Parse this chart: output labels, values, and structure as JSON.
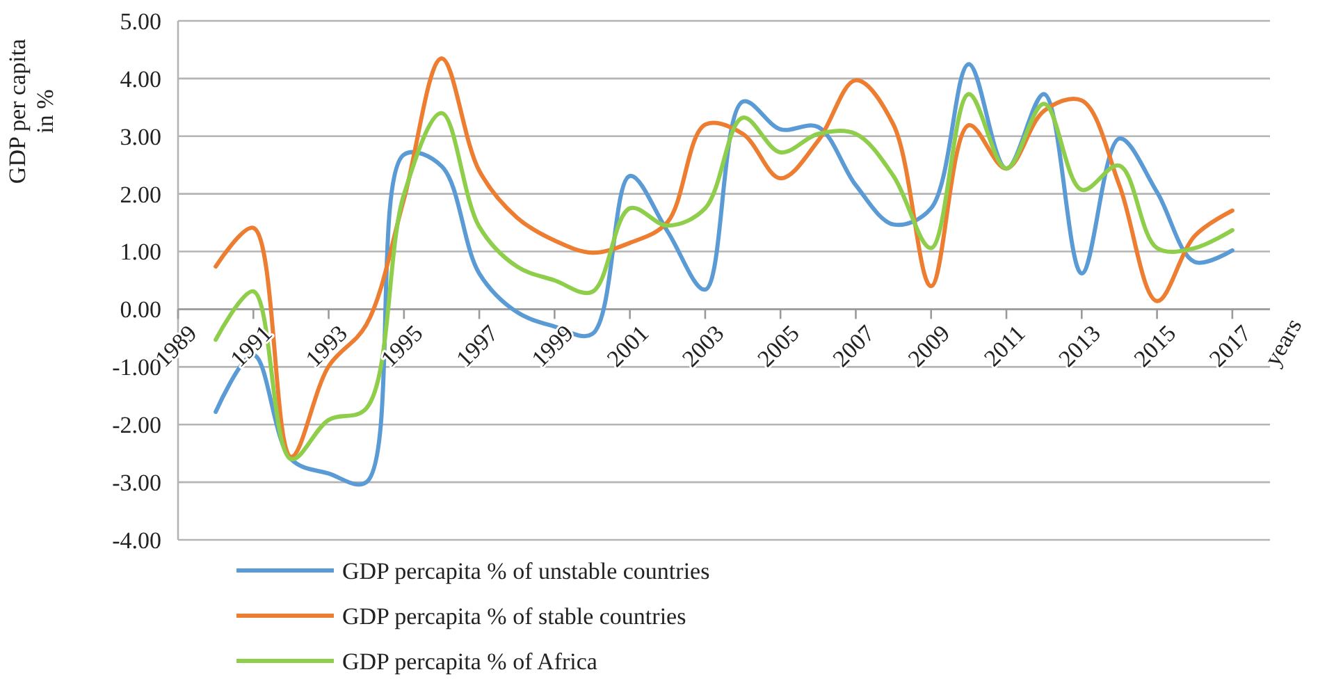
{
  "chart_data": {
    "type": "line",
    "ylabel": "GDP per capita\nin %",
    "xlabel": "years",
    "x": [
      1990,
      1991,
      1992,
      1993,
      1994,
      1995,
      1996,
      1997,
      1998,
      1999,
      2000,
      2001,
      2002,
      2003,
      2004,
      2005,
      2006,
      2007,
      2008,
      2009,
      2010,
      2011,
      2012,
      2013,
      2014,
      2015,
      2016,
      2017
    ],
    "series": [
      {
        "name": "GDP percapita % of unstable countries",
        "color": "#5b9bd5",
        "values": [
          -1.78,
          -0.79,
          -2.6,
          -2.85,
          -3.0,
          2.68,
          2.48,
          0.62,
          -0.05,
          -0.3,
          -0.43,
          2.31,
          1.35,
          0.34,
          3.6,
          3.12,
          3.16,
          2.15,
          1.47,
          1.75,
          4.25,
          2.44,
          3.73,
          0.62,
          2.96,
          2.03,
          0.82,
          1.02
        ]
      },
      {
        "name": "GDP percapita % of stable countries",
        "color": "#ed7d31",
        "values": [
          0.74,
          1.41,
          -2.56,
          -0.99,
          -0.27,
          1.91,
          4.35,
          2.4,
          1.59,
          1.19,
          0.98,
          1.15,
          1.51,
          3.2,
          3.04,
          2.27,
          2.92,
          3.97,
          3.2,
          0.4,
          3.19,
          2.44,
          3.44,
          3.62,
          2.15,
          0.14,
          1.27,
          1.71
        ]
      },
      {
        "name": "GDP percapita % of Africa",
        "color": "#8fce4a",
        "values": [
          -0.53,
          0.31,
          -2.6,
          -1.92,
          -1.72,
          1.99,
          3.4,
          1.43,
          0.74,
          0.5,
          0.3,
          1.75,
          1.45,
          1.75,
          3.32,
          2.72,
          3.04,
          3.04,
          2.31,
          1.06,
          3.73,
          2.44,
          3.56,
          2.07,
          2.49,
          1.06,
          1.06,
          1.37
        ]
      }
    ],
    "xlim": [
      1989,
      2018
    ],
    "xticks": [
      1989,
      1991,
      1993,
      1995,
      1997,
      1999,
      2001,
      2003,
      2005,
      2007,
      2009,
      2011,
      2013,
      2015,
      2017
    ],
    "ylim": [
      -4,
      5
    ],
    "yticks": [
      {
        "value": -4,
        "label": "-4.00"
      },
      {
        "value": -3,
        "label": "-3.00"
      },
      {
        "value": -2,
        "label": "-2.00"
      },
      {
        "value": -1,
        "label": "-1.00"
      },
      {
        "value": 0,
        "label": "0.00"
      },
      {
        "value": 1,
        "label": "1.00"
      },
      {
        "value": 2,
        "label": "2.00"
      },
      {
        "value": 3,
        "label": "3.00"
      },
      {
        "value": 4,
        "label": "4.00"
      },
      {
        "value": 5,
        "label": "5.00"
      }
    ],
    "grid": "y",
    "legend": "bottom",
    "marker": "none",
    "line_style": "solid"
  }
}
